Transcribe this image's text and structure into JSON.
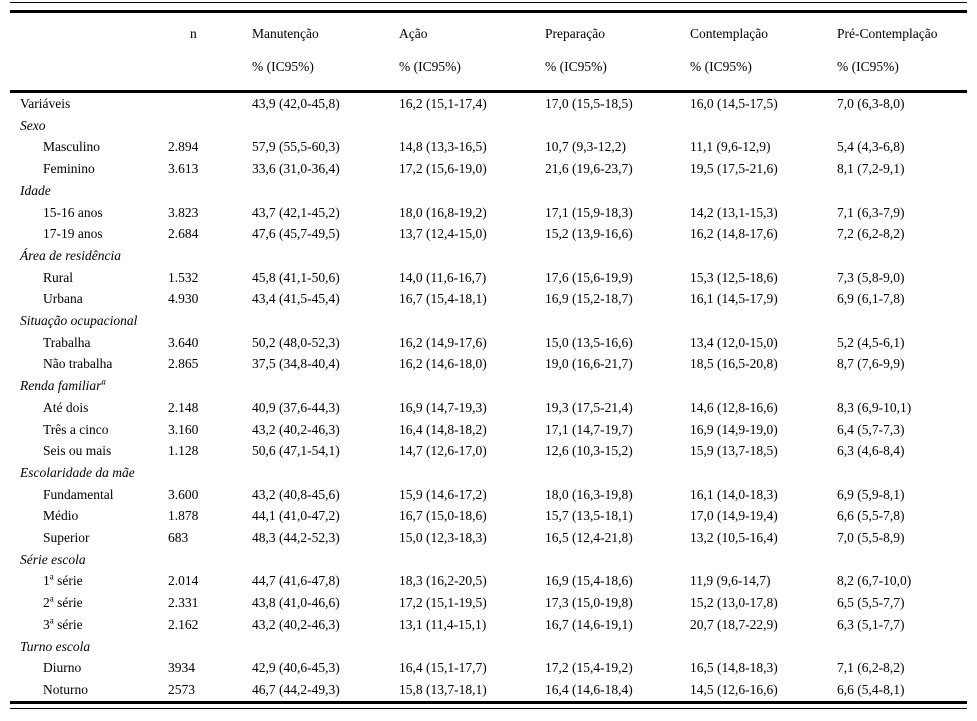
{
  "table": {
    "header": {
      "label_col": "",
      "n_label": "n",
      "stages": [
        "Manutenção",
        "Ação",
        "Preparação",
        "Contemplação",
        "Pré-Contemplação"
      ],
      "ic_label": "% (IC95%)"
    },
    "rows": [
      {
        "type": "data",
        "label": "Variáveis",
        "indent": false,
        "n": "",
        "values": [
          "43,9 (42,0-45,8)",
          "16,2 (15,1-17,4)",
          "17,0 (15,5-18,5)",
          "16,0 (14,5-17,5)",
          "7,0 (6,3-8,0)"
        ]
      },
      {
        "type": "group",
        "label": "Sexo"
      },
      {
        "type": "data",
        "label": "Masculino",
        "indent": true,
        "n": "2.894",
        "values": [
          "57,9 (55,5-60,3)",
          "14,8 (13,3-16,5)",
          "10,7 (9,3-12,2)",
          "11,1 (9,6-12,9)",
          "5,4 (4,3-6,8)"
        ]
      },
      {
        "type": "data",
        "label": "Feminino",
        "indent": true,
        "n": "3.613",
        "values": [
          "33,6 (31,0-36,4)",
          "17,2 (15,6-19,0)",
          "21,6 (19,6-23,7)",
          "19,5 (17,5-21,6)",
          "8,1 (7,2-9,1)"
        ]
      },
      {
        "type": "group",
        "label": "Idade"
      },
      {
        "type": "data",
        "label": "15-16 anos",
        "indent": true,
        "n": "3.823",
        "values": [
          "43,7 (42,1-45,2)",
          "18,0 (16,8-19,2)",
          "17,1 (15,9-18,3)",
          "14,2 (13,1-15,3)",
          "7,1 (6,3-7,9)"
        ]
      },
      {
        "type": "data",
        "label": "17-19 anos",
        "indent": true,
        "n": "2.684",
        "values": [
          "47,6 (45,7-49,5)",
          "13,7 (12,4-15,0)",
          "15,2 (13,9-16,6)",
          "16,2 (14,8-17,6)",
          "7,2 (6,2-8,2)"
        ]
      },
      {
        "type": "group",
        "label": "Área de residência"
      },
      {
        "type": "data",
        "label": "Rural",
        "indent": true,
        "n": "1.532",
        "values": [
          "45,8 (41,1-50,6)",
          "14,0 (11,6-16,7)",
          "17,6 (15,6-19,9)",
          "15,3 (12,5-18,6)",
          "7,3 (5,8-9,0)"
        ]
      },
      {
        "type": "data",
        "label": "Urbana",
        "indent": true,
        "n": "4.930",
        "values": [
          "43,4 (41,5-45,4)",
          "16,7 (15,4-18,1)",
          "16,9 (15,2-18,7)",
          "16,1 (14,5-17,9)",
          "6,9 (6,1-7,8)"
        ]
      },
      {
        "type": "group",
        "label": "Situação ocupacional"
      },
      {
        "type": "data",
        "label": "Trabalha",
        "indent": true,
        "n": "3.640",
        "values": [
          "50,2 (48,0-52,3)",
          "16,2 (14,9-17,6)",
          "15,0 (13,5-16,6)",
          "13,4 (12,0-15,0)",
          "5,2 (4,5-6,1)"
        ]
      },
      {
        "type": "data",
        "label": "Não trabalha",
        "indent": true,
        "n": "2.865",
        "values": [
          "37,5 (34,8-40,4)",
          "16,2 (14,6-18,0)",
          "19,0 (16,6-21,7)",
          "18,5 (16,5-20,8)",
          "8,7 (7,6-9,9)"
        ]
      },
      {
        "type": "group",
        "label": "Renda familiar",
        "sup": "a"
      },
      {
        "type": "data",
        "label": "Até dois",
        "indent": true,
        "n": "2.148",
        "values": [
          "40,9 (37,6-44,3)",
          "16,9 (14,7-19,3)",
          "19,3 (17,5-21,4)",
          "14,6 (12,8-16,6)",
          "8,3 (6,9-10,1)"
        ]
      },
      {
        "type": "data",
        "label": "Três a cinco",
        "indent": true,
        "n": "3.160",
        "values": [
          "43,2 (40,2-46,3)",
          "16,4 (14,8-18,2)",
          "17,1 (14,7-19,7)",
          "16,9 (14,9-19,0)",
          "6,4 (5,7-7,3)"
        ]
      },
      {
        "type": "data",
        "label": "Seis ou mais",
        "indent": true,
        "n": "1.128",
        "values": [
          "50,6 (47,1-54,1)",
          "14,7 (12,6-17,0)",
          "12,6 (10,3-15,2)",
          "15,9 (13,7-18,5)",
          "6,3 (4,6-8,4)"
        ]
      },
      {
        "type": "group",
        "label": "Escolaridade da mãe"
      },
      {
        "type": "data",
        "label": "Fundamental",
        "indent": true,
        "n": "3.600",
        "values": [
          "43,2 (40,8-45,6)",
          "15,9 (14,6-17,2)",
          "18,0 (16,3-19,8)",
          "16,1 (14,0-18,3)",
          "6,9 (5,9-8,1)"
        ]
      },
      {
        "type": "data",
        "label": "Médio",
        "indent": true,
        "n": "1.878",
        "values": [
          "44,1 (41,0-47,2)",
          "16,7 (15,0-18,6)",
          "15,7 (13,5-18,1)",
          "17,0 (14,9-19,4)",
          "6,6 (5,5-7,8)"
        ]
      },
      {
        "type": "data",
        "label": "Superior",
        "indent": true,
        "n": "683",
        "values": [
          "48,3 (44,2-52,3)",
          "15,0 (12,3-18,3)",
          "16,5 (12,4-21,8)",
          "13,2 (10,5-16,4)",
          "7,0 (5,5-8,9)"
        ]
      },
      {
        "type": "group",
        "label": "Série escola"
      },
      {
        "type": "data",
        "label": "1",
        "sup": "a",
        "rest": " série",
        "indent": true,
        "n": "2.014",
        "values": [
          "44,7 (41,6-47,8)",
          "18,3 (16,2-20,5)",
          "16,9 (15,4-18,6)",
          "11,9 (9,6-14,7)",
          "8,2 (6,7-10,0)"
        ]
      },
      {
        "type": "data",
        "label": "2",
        "sup": "a",
        "rest": " série",
        "indent": true,
        "n": "2.331",
        "values": [
          "43,8 (41,0-46,6)",
          "17,2 (15,1-19,5)",
          "17,3 (15,0-19,8)",
          "15,2 (13,0-17,8)",
          "6,5 (5,5-7,7)"
        ]
      },
      {
        "type": "data",
        "label": "3",
        "sup": "a",
        "rest": " série",
        "indent": true,
        "n": "2.162",
        "values": [
          "43,2 (40,2-46,3)",
          "13,1 (11,4-15,1)",
          "16,7 (14,6-19,1)",
          "20,7 (18,7-22,9)",
          "6,3 (5,1-7,7)"
        ]
      },
      {
        "type": "group",
        "label": "Turno escola"
      },
      {
        "type": "data",
        "label": "Diurno",
        "indent": true,
        "n": "3934",
        "values": [
          "42,9 (40,6-45,3)",
          "16,4 (15,1-17,7)",
          "17,2 (15,4-19,2)",
          "16,5 (14,8-18,3)",
          "7,1 (6,2-8,2)"
        ]
      },
      {
        "type": "data",
        "label": "Noturno",
        "indent": true,
        "n": "2573",
        "values": [
          "46,7 (44,2-49,3)",
          "15,8 (13,7-18,1)",
          "16,4 (14,6-18,4)",
          "14,5 (12,6-16,6)",
          "6,6 (5,4-8,1)"
        ]
      }
    ]
  }
}
